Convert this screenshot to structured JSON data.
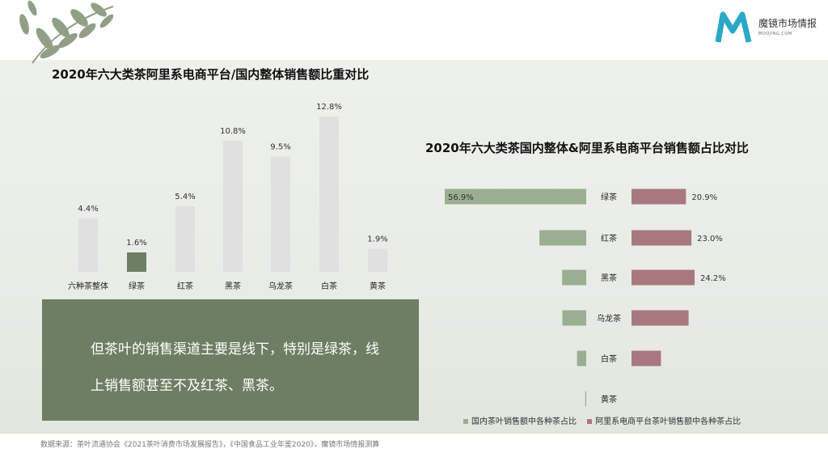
{
  "brand": {
    "name": "魔镜市场情报",
    "sub": "MOOJING.COM"
  },
  "colors": {
    "grey_bar": "#e0e0e0",
    "green_bar": "#6e7e64",
    "domestic": "#9aae92",
    "alibaba": "#a8787e",
    "callout_bg": "#6e7e64"
  },
  "chart1_title": "2020年六大类茶阿里系电商平台/国内整体销售额比重对比",
  "chart2_title": "2020年六大类茶国内整体&阿里系电商平台销售额占比对比",
  "callout_text": "但茶叶的销售渠道主要是线下，特别是绿茶，线上销售额甚至不及红茶、黑茶。",
  "legend": {
    "domestic": "国内茶叶销售额中各种茶占比",
    "alibaba": "阿里系电商平台茶叶销售额中各种茶占比"
  },
  "source": "数据来源：茶叶流通协会《2021茶叶消费市场发展报告》，《中国食品工业年鉴2020》，魔镜市场情报测算",
  "chart_data": [
    {
      "type": "bar",
      "title": "2020年六大类茶阿里系电商平台/国内整体销售额比重对比",
      "categories": [
        "六种茶整体",
        "绿茶",
        "红茶",
        "黑茶",
        "乌龙茶",
        "白茶",
        "黄茶"
      ],
      "values": [
        4.4,
        1.6,
        5.4,
        10.8,
        9.5,
        12.8,
        1.9
      ],
      "labels": [
        "4.4%",
        "1.6%",
        "5.4%",
        "10.8%",
        "9.5%",
        "12.8%",
        "1.9%"
      ],
      "highlight": "绿茶",
      "ylim": [
        0,
        13
      ]
    },
    {
      "type": "bar",
      "orientation": "horizontal-diverging",
      "title": "2020年六大类茶国内整体&阿里系电商平台销售额占比对比",
      "categories": [
        "绿茶",
        "红茶",
        "黑茶",
        "乌龙茶",
        "白茶",
        "黄茶"
      ],
      "series": [
        {
          "name": "国内茶叶销售额中各种茶占比",
          "values": [
            56.9,
            18.8,
            9.7,
            9.6,
            3.7,
            0.4
          ],
          "labels": [
            "56.9%",
            "",
            "",
            "",
            "",
            ""
          ]
        },
        {
          "name": "阿里系电商平台茶叶销售额中各种茶占比",
          "values": [
            20.9,
            23.0,
            24.2,
            21.9,
            11.3,
            0.0
          ],
          "labels": [
            "20.9%",
            "23.0%",
            "24.2%",
            "",
            "",
            ""
          ]
        }
      ]
    }
  ]
}
